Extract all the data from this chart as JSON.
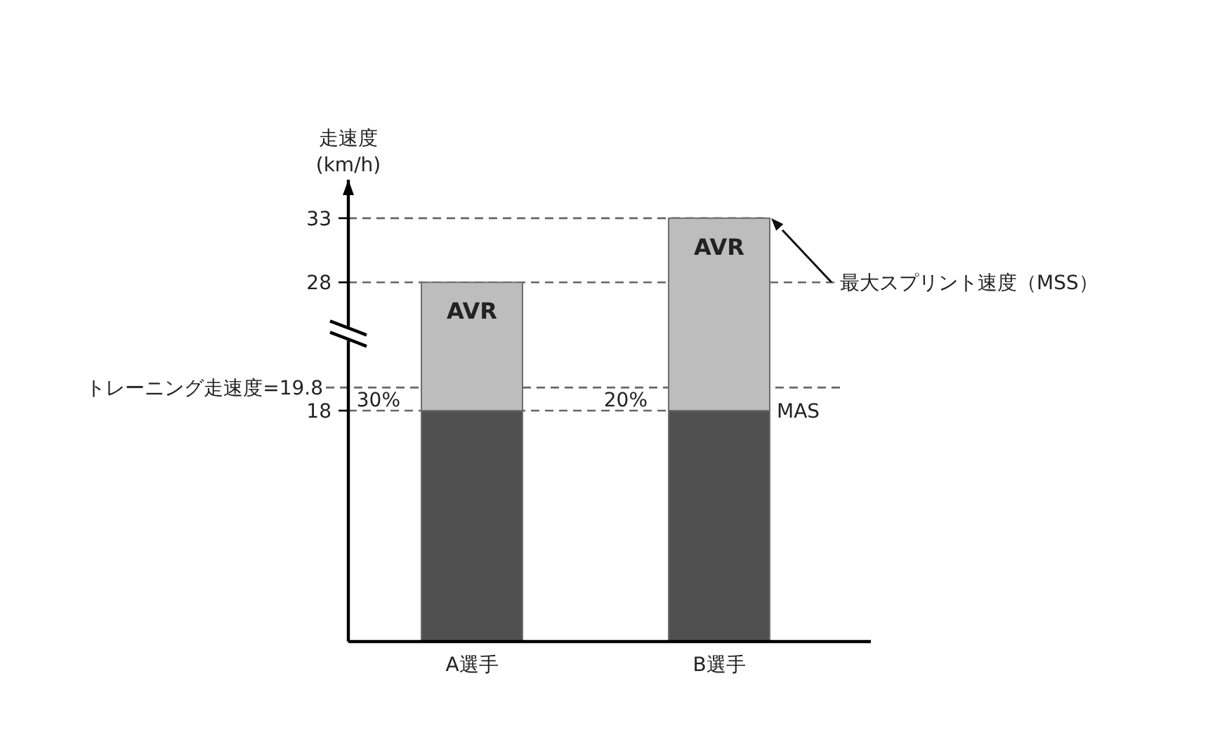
{
  "chart_data": {
    "type": "bar",
    "stacked": true,
    "ylabel": "走速度\n(km/h)",
    "categories": [
      "A選手",
      "B選手"
    ],
    "series": [
      {
        "color": "#505050",
        "values": [
          18,
          18
        ]
      },
      {
        "name": "AVR",
        "color": "#bdbdbd",
        "values": [
          10,
          15
        ]
      }
    ],
    "ylim": [
      0,
      36
    ],
    "yticks": [
      18,
      28,
      33
    ],
    "ref_lines": [
      {
        "axis": "y",
        "value": 19.8,
        "label": "トレーニング走速度=19.8",
        "line_style": "dashed",
        "color": "#666666"
      },
      {
        "axis": "y",
        "value": 18,
        "label": "MAS",
        "line_style": "dashed",
        "color": "#666666"
      },
      {
        "axis": "y",
        "value": 28,
        "label": "最大スプリント速度（MSS）",
        "line_style": "dashed",
        "color": "#666666"
      },
      {
        "axis": "y",
        "value": 33,
        "label": null,
        "line_style": "dashed",
        "color": "#666666"
      }
    ],
    "annotations": [
      "30%",
      "20%"
    ]
  }
}
